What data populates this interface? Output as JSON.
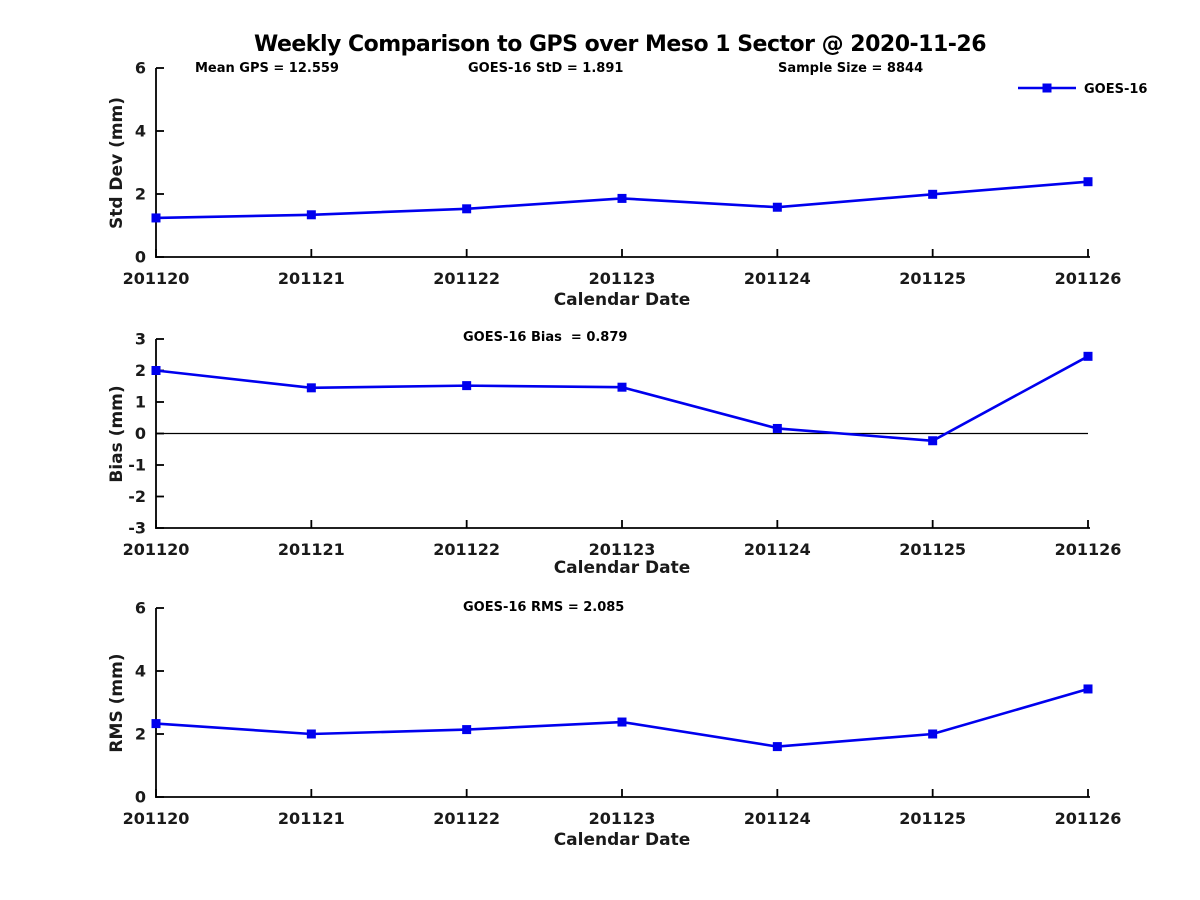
{
  "title": "Weekly Comparison to GPS over Meso 1 Sector @ 2020-11-26",
  "legend": {
    "label": "GOES-16"
  },
  "colors": {
    "series": "#0000ee",
    "axis": "#000000"
  },
  "stats": {
    "mean_gps": 12.559,
    "goes16_std": 1.891,
    "sample_size": 8844,
    "goes16_bias": 0.879,
    "goes16_rms": 2.085
  },
  "chart_data": [
    {
      "type": "line",
      "name": "std-dev",
      "annotations": [
        "Mean GPS = 12.559",
        "GOES-16 StD = 1.891",
        "Sample Size = 8844"
      ],
      "categories": [
        "201120",
        "201121",
        "201122",
        "201123",
        "201124",
        "201125",
        "201126"
      ],
      "series": [
        {
          "name": "GOES-16",
          "values": [
            1.24,
            1.34,
            1.53,
            1.86,
            1.58,
            1.99,
            2.39
          ]
        }
      ],
      "xlabel": "Calendar Date",
      "ylabel": "Std Dev (mm)",
      "ylim": [
        0,
        6
      ],
      "yticks": [
        0,
        2,
        4,
        6
      ],
      "zero_line": false,
      "grid": false,
      "legend_position": "top-right"
    },
    {
      "type": "line",
      "name": "bias",
      "annotations": [
        "GOES-16 Bias  = 0.879"
      ],
      "categories": [
        "201120",
        "201121",
        "201122",
        "201123",
        "201124",
        "201125",
        "201126"
      ],
      "series": [
        {
          "name": "GOES-16",
          "values": [
            2.0,
            1.45,
            1.52,
            1.47,
            0.16,
            -0.23,
            2.45
          ]
        }
      ],
      "xlabel": "Calendar Date",
      "ylabel": "Bias (mm)",
      "ylim": [
        -3,
        3
      ],
      "yticks": [
        3,
        2,
        1,
        0,
        -1,
        -2,
        -3
      ],
      "zero_line": true,
      "grid": false,
      "legend_position": "none"
    },
    {
      "type": "line",
      "name": "rms",
      "annotations": [
        "GOES-16 RMS = 2.085"
      ],
      "categories": [
        "201120",
        "201121",
        "201122",
        "201123",
        "201124",
        "201125",
        "201126"
      ],
      "series": [
        {
          "name": "GOES-16",
          "values": [
            2.33,
            2.0,
            2.14,
            2.38,
            1.6,
            2.0,
            3.43
          ]
        }
      ],
      "xlabel": "Calendar Date",
      "ylabel": "RMS (mm)",
      "ylim": [
        0,
        6
      ],
      "yticks": [
        0,
        2,
        4,
        6
      ],
      "zero_line": false,
      "grid": false,
      "legend_position": "none"
    }
  ]
}
